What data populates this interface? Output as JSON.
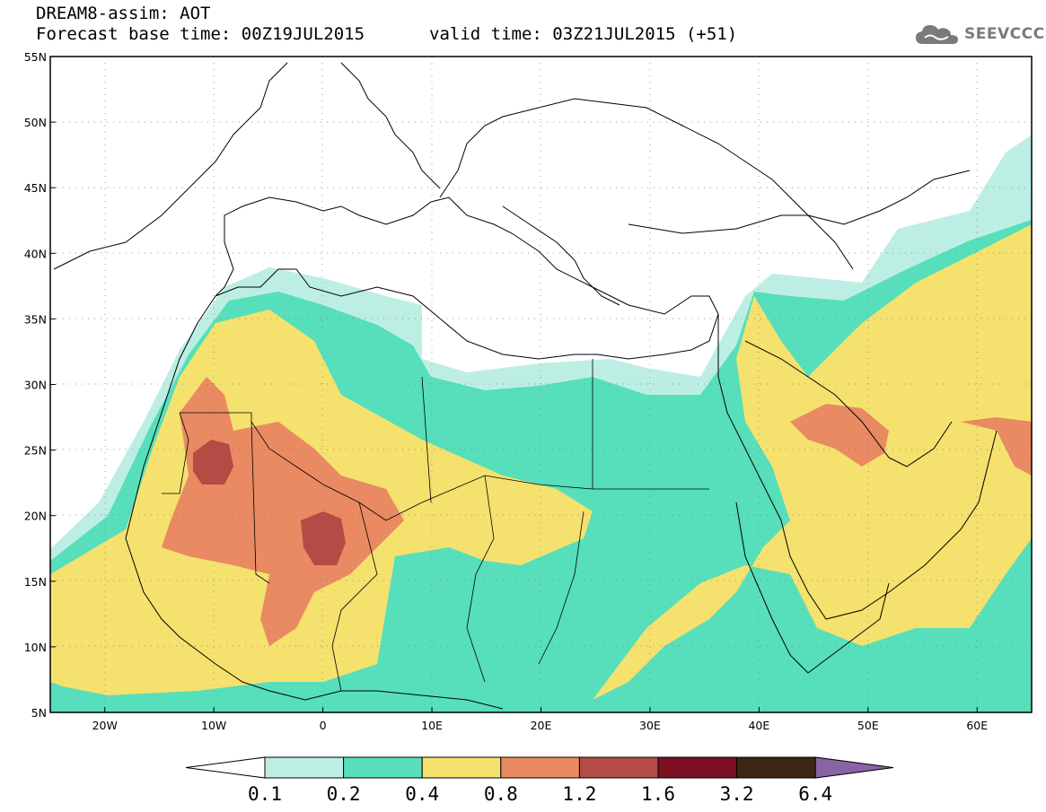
{
  "header": {
    "line1": "DREAM8-assim: AOT",
    "line2": "Forecast base time: 00Z19JUL2015",
    "valid": "valid time: 03Z21JUL2015 (+51)"
  },
  "logo": {
    "text": "SEEVCCC",
    "icon": "cloud-icon"
  },
  "map": {
    "lat_labels": [
      "55N",
      "50N",
      "45N",
      "40N",
      "35N",
      "30N",
      "25N",
      "20N",
      "15N",
      "10N",
      "5N"
    ],
    "lon_labels": [
      "20W",
      "10W",
      "0",
      "10E",
      "20E",
      "30E",
      "40E",
      "50E",
      "60E"
    ],
    "lat_range": [
      5,
      55
    ],
    "lon_range": [
      -25,
      65
    ],
    "grid": "dotted",
    "colors": {
      "lightcyan": "#bdeee4",
      "green": "#56dfba",
      "yellow": "#f5e16e",
      "orange": "#e98a63",
      "darkred": "#b44b44"
    }
  },
  "legend": {
    "labels": [
      "0.1",
      "0.2",
      "0.4",
      "0.8",
      "1.2",
      "1.6",
      "3.2",
      "6.4"
    ],
    "colors": [
      "#ffffff",
      "#bdeee4",
      "#56dfba",
      "#f5e16e",
      "#e98a63",
      "#b44b44",
      "#7c0f22",
      "#3b2616",
      "#8a63a6"
    ]
  }
}
